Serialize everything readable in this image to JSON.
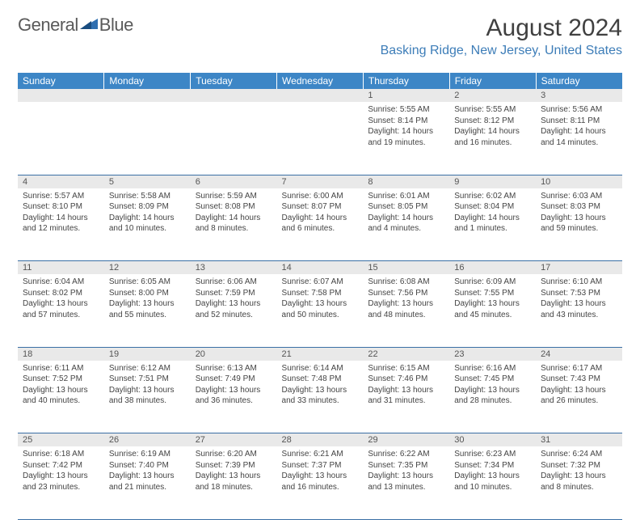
{
  "brand": {
    "part1": "General",
    "part2": "Blue"
  },
  "colors": {
    "header_bg": "#3d86c6",
    "header_text": "#ffffff",
    "daynum_bg": "#e9e9e9",
    "row_border": "#3a6fa5",
    "location_color": "#3d7db8",
    "logo_text": "#5a5a5a",
    "body_text": "#444444"
  },
  "title": "August 2024",
  "location": "Basking Ridge, New Jersey, United States",
  "weekday_labels": [
    "Sunday",
    "Monday",
    "Tuesday",
    "Wednesday",
    "Thursday",
    "Friday",
    "Saturday"
  ],
  "days": {
    "1": {
      "sunrise": "5:55 AM",
      "sunset": "8:14 PM",
      "dl_h": 14,
      "dl_m": 19
    },
    "2": {
      "sunrise": "5:55 AM",
      "sunset": "8:12 PM",
      "dl_h": 14,
      "dl_m": 16
    },
    "3": {
      "sunrise": "5:56 AM",
      "sunset": "8:11 PM",
      "dl_h": 14,
      "dl_m": 14
    },
    "4": {
      "sunrise": "5:57 AM",
      "sunset": "8:10 PM",
      "dl_h": 14,
      "dl_m": 12
    },
    "5": {
      "sunrise": "5:58 AM",
      "sunset": "8:09 PM",
      "dl_h": 14,
      "dl_m": 10
    },
    "6": {
      "sunrise": "5:59 AM",
      "sunset": "8:08 PM",
      "dl_h": 14,
      "dl_m": 8
    },
    "7": {
      "sunrise": "6:00 AM",
      "sunset": "8:07 PM",
      "dl_h": 14,
      "dl_m": 6
    },
    "8": {
      "sunrise": "6:01 AM",
      "sunset": "8:05 PM",
      "dl_h": 14,
      "dl_m": 4
    },
    "9": {
      "sunrise": "6:02 AM",
      "sunset": "8:04 PM",
      "dl_h": 14,
      "dl_m": 1
    },
    "10": {
      "sunrise": "6:03 AM",
      "sunset": "8:03 PM",
      "dl_h": 13,
      "dl_m": 59
    },
    "11": {
      "sunrise": "6:04 AM",
      "sunset": "8:02 PM",
      "dl_h": 13,
      "dl_m": 57
    },
    "12": {
      "sunrise": "6:05 AM",
      "sunset": "8:00 PM",
      "dl_h": 13,
      "dl_m": 55
    },
    "13": {
      "sunrise": "6:06 AM",
      "sunset": "7:59 PM",
      "dl_h": 13,
      "dl_m": 52
    },
    "14": {
      "sunrise": "6:07 AM",
      "sunset": "7:58 PM",
      "dl_h": 13,
      "dl_m": 50
    },
    "15": {
      "sunrise": "6:08 AM",
      "sunset": "7:56 PM",
      "dl_h": 13,
      "dl_m": 48
    },
    "16": {
      "sunrise": "6:09 AM",
      "sunset": "7:55 PM",
      "dl_h": 13,
      "dl_m": 45
    },
    "17": {
      "sunrise": "6:10 AM",
      "sunset": "7:53 PM",
      "dl_h": 13,
      "dl_m": 43
    },
    "18": {
      "sunrise": "6:11 AM",
      "sunset": "7:52 PM",
      "dl_h": 13,
      "dl_m": 40
    },
    "19": {
      "sunrise": "6:12 AM",
      "sunset": "7:51 PM",
      "dl_h": 13,
      "dl_m": 38
    },
    "20": {
      "sunrise": "6:13 AM",
      "sunset": "7:49 PM",
      "dl_h": 13,
      "dl_m": 36
    },
    "21": {
      "sunrise": "6:14 AM",
      "sunset": "7:48 PM",
      "dl_h": 13,
      "dl_m": 33
    },
    "22": {
      "sunrise": "6:15 AM",
      "sunset": "7:46 PM",
      "dl_h": 13,
      "dl_m": 31
    },
    "23": {
      "sunrise": "6:16 AM",
      "sunset": "7:45 PM",
      "dl_h": 13,
      "dl_m": 28
    },
    "24": {
      "sunrise": "6:17 AM",
      "sunset": "7:43 PM",
      "dl_h": 13,
      "dl_m": 26
    },
    "25": {
      "sunrise": "6:18 AM",
      "sunset": "7:42 PM",
      "dl_h": 13,
      "dl_m": 23
    },
    "26": {
      "sunrise": "6:19 AM",
      "sunset": "7:40 PM",
      "dl_h": 13,
      "dl_m": 21
    },
    "27": {
      "sunrise": "6:20 AM",
      "sunset": "7:39 PM",
      "dl_h": 13,
      "dl_m": 18
    },
    "28": {
      "sunrise": "6:21 AM",
      "sunset": "7:37 PM",
      "dl_h": 13,
      "dl_m": 16
    },
    "29": {
      "sunrise": "6:22 AM",
      "sunset": "7:35 PM",
      "dl_h": 13,
      "dl_m": 13
    },
    "30": {
      "sunrise": "6:23 AM",
      "sunset": "7:34 PM",
      "dl_h": 13,
      "dl_m": 10
    },
    "31": {
      "sunrise": "6:24 AM",
      "sunset": "7:32 PM",
      "dl_h": 13,
      "dl_m": 8
    }
  },
  "labels": {
    "sunrise_prefix": "Sunrise: ",
    "sunset_prefix": "Sunset: ",
    "daylight_prefix": "Daylight: ",
    "hours_word": " hours",
    "minutes_word": " minutes.",
    "and_word": "and "
  },
  "layout": {
    "weeks": [
      [
        null,
        null,
        null,
        null,
        "1",
        "2",
        "3"
      ],
      [
        "4",
        "5",
        "6",
        "7",
        "8",
        "9",
        "10"
      ],
      [
        "11",
        "12",
        "13",
        "14",
        "15",
        "16",
        "17"
      ],
      [
        "18",
        "19",
        "20",
        "21",
        "22",
        "23",
        "24"
      ],
      [
        "25",
        "26",
        "27",
        "28",
        "29",
        "30",
        "31"
      ]
    ]
  }
}
